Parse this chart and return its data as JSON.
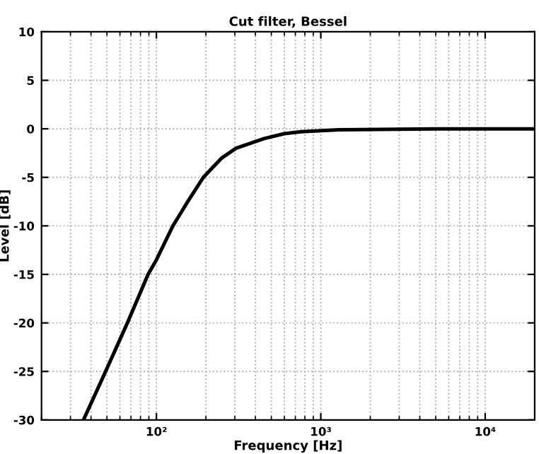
{
  "chart_data": {
    "type": "line",
    "title": "Cut filter, Bessel",
    "xlabel": "Frequency [Hz]",
    "ylabel": "Level [dB]",
    "log": "x",
    "x": [
      36,
      50,
      66.6,
      89,
      100,
      126,
      155,
      193,
      250,
      305,
      453,
      600,
      760,
      1290,
      5000,
      20000
    ],
    "series": [
      {
        "color": "#000000",
        "values": [
          -30,
          -24.7,
          -20,
          -15,
          -13.5,
          -10,
          -7.5,
          -5,
          -3,
          -2,
          -1,
          -0.5,
          -0.3,
          -0.1,
          0,
          0
        ]
      }
    ],
    "xlim": [
      20,
      20000
    ],
    "xticks": [
      {
        "value": 100,
        "label": "10²"
      },
      {
        "value": 1000,
        "label": "10³"
      },
      {
        "value": 10000,
        "label": "10⁴"
      }
    ],
    "ylim": [
      -30,
      10
    ],
    "yticks": [
      -30,
      -25,
      -20,
      -15,
      -10,
      -5,
      0,
      5,
      10
    ],
    "grid": true,
    "marker": "none",
    "line_style": "solid"
  }
}
